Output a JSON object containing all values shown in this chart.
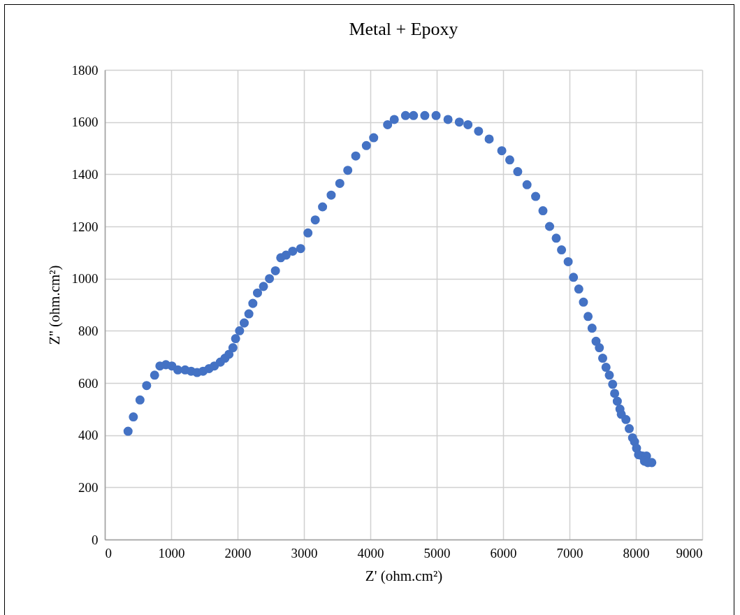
{
  "chart_data": {
    "type": "scatter",
    "title": "Metal + Epoxy",
    "xlabel": "Z' (ohm.cm²)",
    "ylabel": "Z'' (ohm.cm²)",
    "x": [
      350,
      430,
      530,
      630,
      750,
      830,
      920,
      1010,
      1100,
      1210,
      1300,
      1390,
      1480,
      1570,
      1650,
      1740,
      1810,
      1870,
      1930,
      1970,
      2030,
      2100,
      2170,
      2230,
      2300,
      2390,
      2480,
      2570,
      2650,
      2730,
      2830,
      2950,
      3060,
      3170,
      3280,
      3410,
      3540,
      3660,
      3780,
      3940,
      4050,
      4260,
      4360,
      4530,
      4650,
      4820,
      4990,
      5170,
      5340,
      5470,
      5630,
      5790,
      5980,
      6100,
      6220,
      6360,
      6490,
      6600,
      6700,
      6800,
      6880,
      6980,
      7060,
      7140,
      7210,
      7280,
      7340,
      7400,
      7450,
      7500,
      7550,
      7600,
      7650,
      7680,
      7720,
      7760,
      7780,
      7850,
      7900,
      7950,
      7980,
      8010,
      8040,
      8100,
      8160,
      8130,
      8180,
      8240
    ],
    "series": [
      {
        "color": "#4472c4",
        "values": [
          415,
          470,
          535,
          590,
          630,
          665,
          670,
          665,
          650,
          650,
          645,
          640,
          645,
          655,
          665,
          680,
          695,
          710,
          735,
          770,
          800,
          830,
          865,
          905,
          945,
          970,
          1000,
          1030,
          1080,
          1090,
          1105,
          1115,
          1175,
          1225,
          1275,
          1320,
          1365,
          1415,
          1470,
          1510,
          1540,
          1590,
          1610,
          1625,
          1625,
          1625,
          1625,
          1610,
          1600,
          1590,
          1565,
          1535,
          1490,
          1455,
          1410,
          1360,
          1315,
          1260,
          1200,
          1155,
          1110,
          1065,
          1005,
          960,
          910,
          855,
          810,
          760,
          735,
          695,
          660,
          630,
          595,
          560,
          530,
          500,
          480,
          460,
          425,
          390,
          375,
          350,
          325,
          320,
          320,
          300,
          295,
          295
        ]
      }
    ],
    "xlim": [
      0,
      9000
    ],
    "xticks": [
      0,
      1000,
      2000,
      3000,
      4000,
      5000,
      6000,
      7000,
      8000,
      9000
    ],
    "ylim": [
      0,
      1800
    ],
    "yticks": [
      0,
      200,
      400,
      600,
      800,
      1000,
      1200,
      1400,
      1600,
      1800
    ],
    "grid": true,
    "marker": "circle"
  }
}
